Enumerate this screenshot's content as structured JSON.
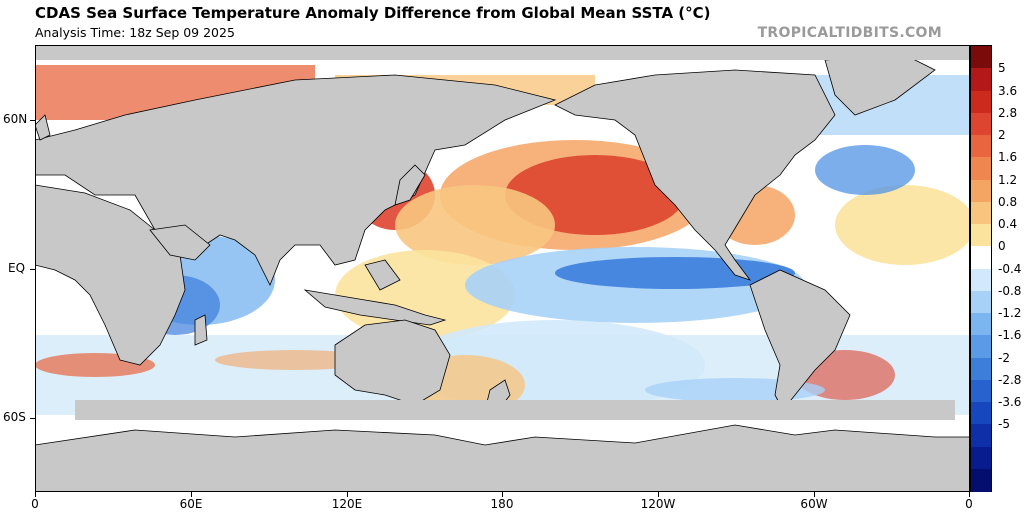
{
  "header": {
    "title": "CDAS Sea Surface Temperature Anomaly Difference from Global Mean SSTA (°C)",
    "analysis_time": "Analysis Time: 18z Sep 09 2025",
    "credit": "TROPICALTIDBITS.COM"
  },
  "map": {
    "projection": "equirectangular",
    "lat_labels": [
      "60N",
      "EQ",
      "60S"
    ],
    "lon_labels": [
      "0",
      "60E",
      "120E",
      "180",
      "120W",
      "60W",
      "0"
    ]
  },
  "colorbar": {
    "labels": [
      "5",
      "3.6",
      "2.8",
      "2",
      "1.6",
      "1.2",
      "0.8",
      "0.4",
      "0",
      "-0.4",
      "-0.8",
      "-1.2",
      "-1.6",
      "-2",
      "-2.8",
      "-3.6",
      "-5"
    ],
    "colors": [
      "#7a0b0b",
      "#b41818",
      "#cc2a1c",
      "#de4530",
      "#e8653f",
      "#ef8650",
      "#f4a563",
      "#f8c57f",
      "#fbe39d",
      "#ffffff",
      "#d2e9fb",
      "#a7d1f7",
      "#7cb6f0",
      "#5a9ae6",
      "#3d7edb",
      "#2862cf",
      "#1747bf",
      "#0e2fa8",
      "#081c8f",
      "#040e6e"
    ]
  }
}
